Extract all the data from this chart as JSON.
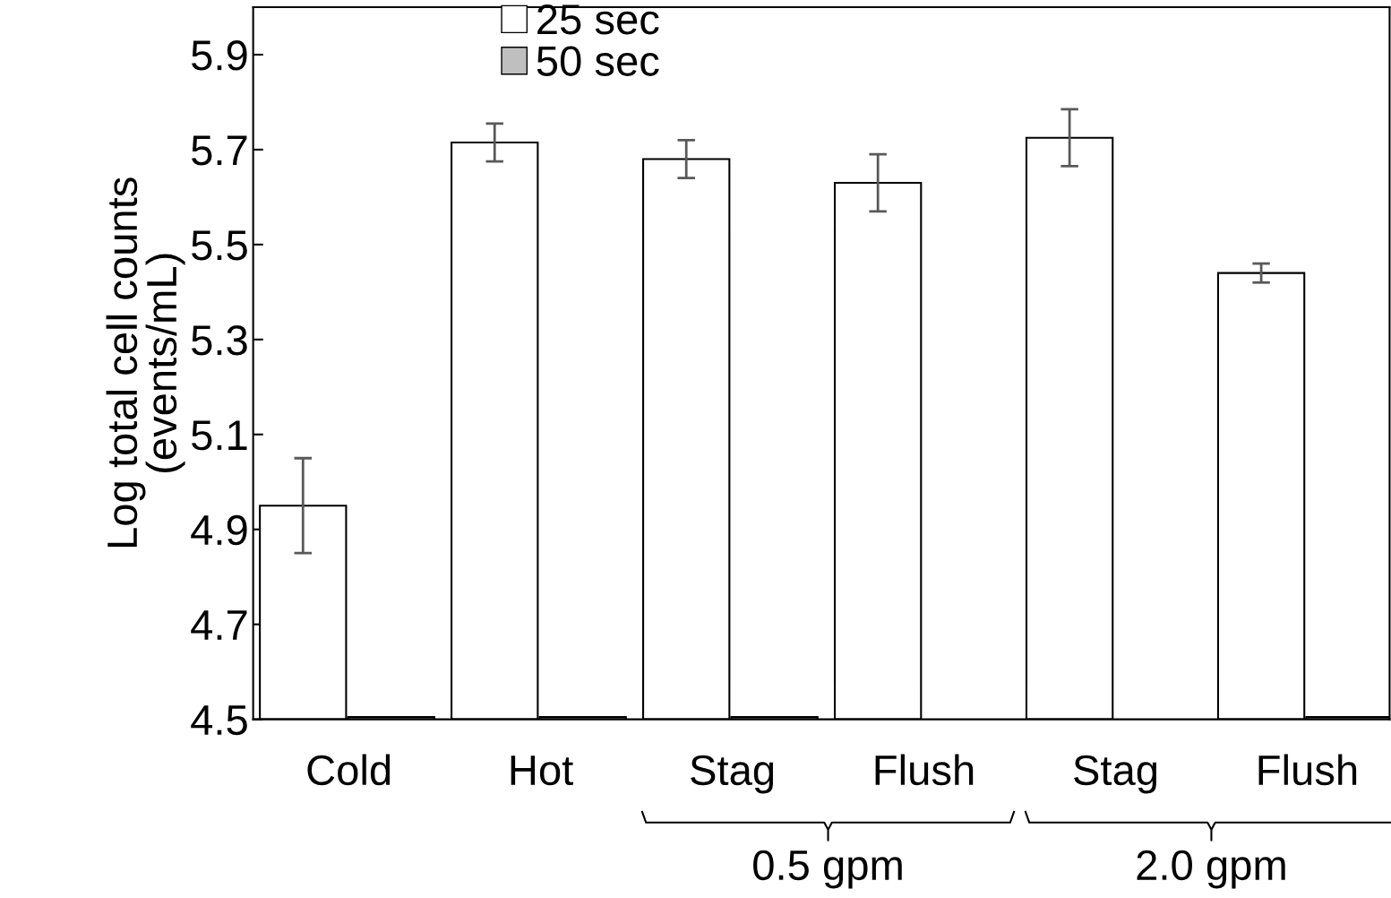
{
  "chart_data": {
    "type": "bar",
    "ylabel": "Log total cell counts\n(events/mL)",
    "categories": [
      "Cold",
      "Hot",
      "Stag",
      "Flush",
      "Stag",
      "Flush"
    ],
    "series": [
      {
        "name": "25 sec",
        "color": "#ffffff",
        "values": [
          4.95,
          5.715,
          5.68,
          5.63,
          5.725,
          5.44
        ],
        "errors": [
          0.1,
          0.04,
          0.04,
          0.06,
          0.06,
          0.02
        ]
      },
      {
        "name": "50 sec",
        "color": "#bfbfbf",
        "values": [
          4.505,
          4.505,
          4.505,
          null,
          null,
          4.505
        ]
      }
    ],
    "ylim": [
      4.5,
      6.0
    ],
    "yticks": [
      4.5,
      4.7,
      4.9,
      5.1,
      5.3,
      5.5,
      5.7,
      5.9
    ],
    "annotations": [
      "0.5 gpm",
      "2.0 gpm"
    ],
    "grid": false,
    "legend": "top left"
  }
}
